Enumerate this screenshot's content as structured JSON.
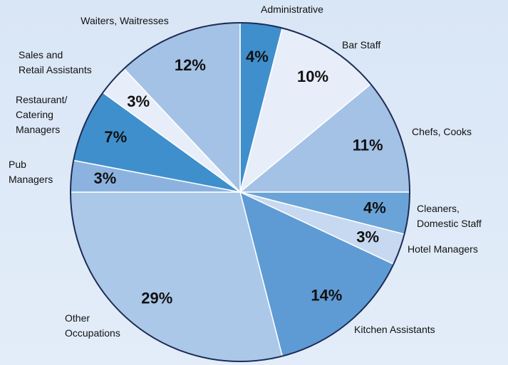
{
  "chart_data": {
    "type": "pie",
    "categories": [
      "Administrative",
      "Bar Staff",
      "Chefs, Cooks",
      "Cleaners,\nDomestic Staff",
      "Hotel Managers",
      "Kitchen Assistants",
      "Other\nOccupations",
      "Pub\nManagers",
      "Restaurant/\nCatering\nManagers",
      "Sales and\nRetail Assistants",
      "Waiters, Waitresses"
    ],
    "values": [
      4,
      10,
      11,
      4,
      3,
      14,
      29,
      3,
      7,
      3,
      12
    ],
    "value_labels": [
      "4%",
      "10%",
      "11%",
      "4%",
      "3%",
      "14%",
      "29%",
      "3%",
      "7%",
      "3%",
      "12%"
    ],
    "colors": [
      "#3f8fcd",
      "#e8eef9",
      "#a4c2e6",
      "#6aa3d7",
      "#c6d9f0",
      "#5e9bd4",
      "#abc8e9",
      "#8cb3df",
      "#3f8fcd",
      "#e8eef9",
      "#a4c2e6"
    ]
  }
}
